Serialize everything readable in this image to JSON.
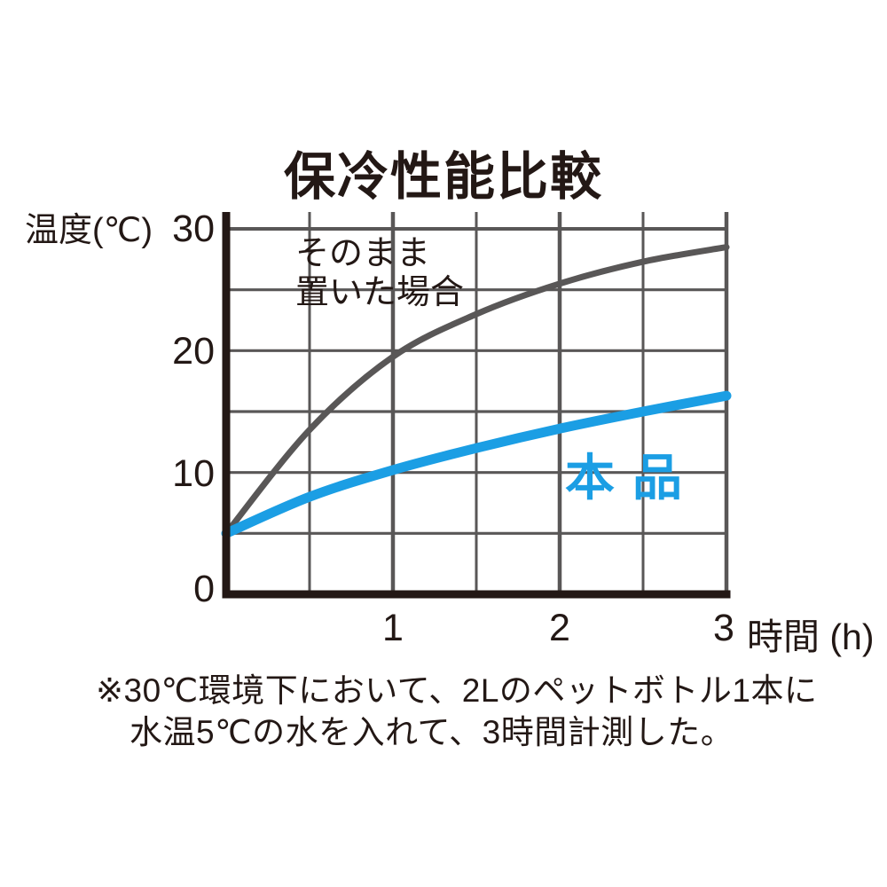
{
  "title": "保冷性能比較",
  "chart_data": {
    "type": "line",
    "title": "保冷性能比較",
    "xlabel": "時間 (h)",
    "ylabel": "温度(℃)",
    "x_axis": {
      "range": [
        0,
        3
      ],
      "major_ticks": [
        1,
        2,
        3
      ],
      "minor_grid_step": 0.5
    },
    "y_axis": {
      "range": [
        0,
        30
      ],
      "tick_labels": [
        30,
        20,
        10,
        0
      ],
      "grid_step": 5
    },
    "grid": true,
    "legend_position": "inline-annotations",
    "series": [
      {
        "name": "そのまま置いた場合",
        "color": "#595757",
        "stroke_width": 7,
        "points": [
          [
            0,
            5
          ],
          [
            0.5,
            13.5
          ],
          [
            1,
            19.5
          ],
          [
            1.5,
            23
          ],
          [
            2,
            25.5
          ],
          [
            2.5,
            27.3
          ],
          [
            3,
            28.5
          ]
        ]
      },
      {
        "name": "本品",
        "color": "#1B9EE4",
        "stroke_width": 11,
        "points": [
          [
            0,
            5
          ],
          [
            0.5,
            8
          ],
          [
            1,
            10.2
          ],
          [
            1.5,
            12
          ],
          [
            2,
            13.6
          ],
          [
            2.5,
            15
          ],
          [
            3,
            16.3
          ]
        ]
      }
    ]
  },
  "labels": {
    "y_unit": "温度(℃)",
    "y_ticks": [
      "30",
      "20",
      "10",
      "0"
    ],
    "x_ticks": [
      "1",
      "2",
      "3"
    ],
    "x_unit": "時間 (h)",
    "ambient_line1": "そのまま",
    "ambient_line2": "置いた場合",
    "product": "本品"
  },
  "footnote": {
    "line1": "※30℃環境下において、2Lのペットボトル1本に",
    "line2": "水温5℃の水を入れて、3時間計測した。"
  },
  "colors": {
    "text": "#231815",
    "axis": "#231815",
    "grid": "#595757",
    "curve_ambient": "#595757",
    "curve_product": "#1B9EE4",
    "background": "#FFFFFF"
  }
}
